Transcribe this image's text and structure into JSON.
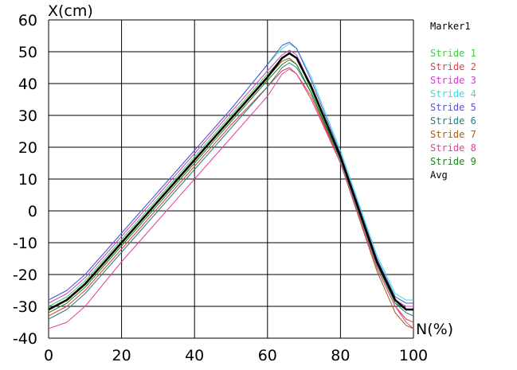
{
  "chart_data": {
    "type": "line",
    "title": "",
    "xlabel": "N(%)",
    "ylabel": "X(cm)",
    "xlim": [
      0,
      100
    ],
    "ylim": [
      -40,
      60
    ],
    "xticks": [
      0,
      20,
      40,
      60,
      80,
      100
    ],
    "yticks": [
      60,
      50,
      40,
      30,
      20,
      10,
      0,
      -10,
      -20,
      -30,
      -40
    ],
    "grid": true,
    "legend_position": "right",
    "legend_title": "Marker1",
    "x": [
      0,
      5,
      10,
      20,
      30,
      40,
      50,
      60,
      64,
      66,
      68,
      72,
      80,
      90,
      95,
      98,
      100
    ],
    "series": [
      {
        "name": "Stride 1",
        "color": "#44cc44",
        "values": [
          -30,
          -27,
          -22,
          -9,
          4,
          17,
          30,
          43,
          48,
          49.5,
          48,
          38,
          16,
          -16,
          -27,
          -29,
          -29
        ]
      },
      {
        "name": "Stride 2",
        "color": "#e04040",
        "values": [
          -33,
          -30,
          -25,
          -12,
          1,
          14,
          27,
          39,
          44,
          45,
          43,
          35,
          15,
          -18,
          -30,
          -34,
          -35
        ]
      },
      {
        "name": "Stride 3",
        "color": "#d040d0",
        "values": [
          -29,
          -26,
          -21,
          -8,
          5,
          18,
          31,
          44,
          49,
          50.5,
          49,
          39,
          17,
          -16,
          -28,
          -30,
          -30
        ]
      },
      {
        "name": "Stride 4",
        "color": "#33dddd",
        "values": [
          -28,
          -25,
          -20,
          -7,
          6,
          19,
          32,
          46,
          51,
          52.5,
          51,
          42,
          19,
          -14,
          -26,
          -28,
          -28
        ]
      },
      {
        "name": "Stride 5",
        "color": "#5555cc",
        "values": [
          -28,
          -25,
          -20,
          -7,
          6,
          19,
          32,
          46,
          52,
          53,
          51,
          41,
          18,
          -15,
          -27,
          -29,
          -29
        ]
      },
      {
        "name": "Stride 6",
        "color": "#208080",
        "values": [
          -34,
          -31,
          -26,
          -13,
          0,
          13,
          26,
          39,
          45,
          46.5,
          45,
          37,
          16,
          -17,
          -29,
          -32,
          -33
        ]
      },
      {
        "name": "Stride 7",
        "color": "#a06020",
        "values": [
          -31,
          -28,
          -23,
          -10,
          3,
          16,
          29,
          42,
          47,
          48,
          46,
          37,
          15,
          -19,
          -32,
          -36,
          -37
        ]
      },
      {
        "name": "Stride 8",
        "color": "#e040a0",
        "values": [
          -37,
          -35,
          -30,
          -16,
          -3,
          10,
          23,
          36,
          43,
          44.5,
          43,
          36,
          15,
          -18,
          -30,
          -35,
          -37
        ]
      },
      {
        "name": "Stride 9",
        "color": "#208020",
        "values": [
          -32,
          -29,
          -24,
          -11,
          2,
          15,
          28,
          41,
          46,
          47.5,
          46,
          37,
          16,
          -17,
          -29,
          -31,
          -31
        ]
      },
      {
        "name": "Avg",
        "color": "#000000",
        "values": [
          -31,
          -28,
          -23,
          -10,
          3,
          16,
          29,
          42,
          48,
          49.5,
          48,
          39,
          17,
          -16,
          -28,
          -31,
          -31
        ]
      }
    ]
  }
}
